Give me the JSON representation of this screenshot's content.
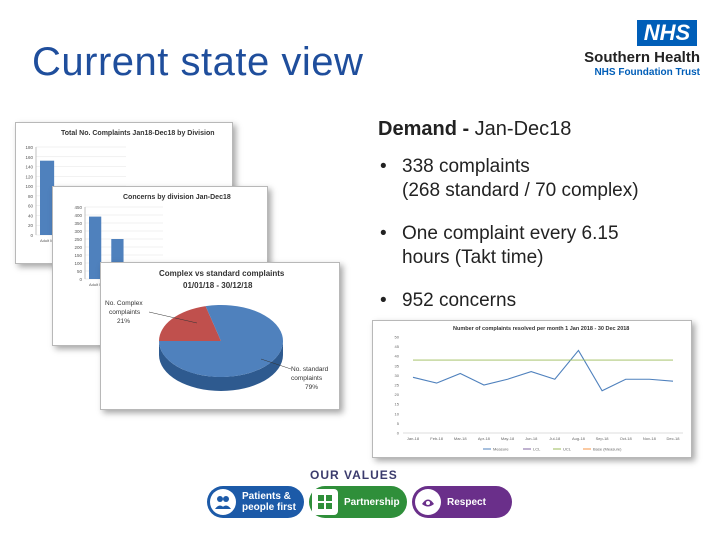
{
  "slide": {
    "title": "Current state view"
  },
  "logo": {
    "nhs": "NHS",
    "org_name": "Southern Health",
    "org_sub": "NHS Foundation Trust"
  },
  "demand": {
    "heading_bold": "Demand -",
    "heading_rest": " Jan-Dec18",
    "bullets": [
      {
        "line1": "338 complaints",
        "line2": "(268 standard / 70 complex)"
      },
      {
        "line1": "One complaint every 6.15",
        "line2": "hours (Takt time)"
      },
      {
        "line1": "952 concerns",
        "line2": ""
      }
    ]
  },
  "cards": {
    "division_complaints": {
      "title": "Total No. Complaints Jan18-Dec18 by Division",
      "chart_data": {
        "type": "bar",
        "categories": [
          "Adult Mental Health",
          "Adult Community"
        ],
        "values": [
          152,
          60
        ],
        "yticks": [
          "180",
          "160",
          "140",
          "120",
          "100",
          "80",
          "60",
          "40",
          "20",
          "0"
        ],
        "ylim": [
          0,
          180
        ]
      }
    },
    "division_concerns": {
      "title": "Concerns by division Jan-Dec18",
      "chart_data": {
        "type": "bar",
        "categories": [
          "Adult Mental Health",
          "Adult Community"
        ],
        "values": [
          390,
          250
        ],
        "yticks": [
          "450",
          "400",
          "350",
          "300",
          "250",
          "200",
          "150",
          "100",
          "50",
          "0"
        ],
        "ylim": [
          0,
          450
        ]
      }
    },
    "complex_vs_standard": {
      "title": "Complex vs standard complaints",
      "subtitle": "01/01/18 - 30/12/18",
      "chart_data": {
        "type": "pie",
        "slices": [
          {
            "label": "No. Complex complaints",
            "value": 21,
            "display": "21%",
            "color": "#c0504d"
          },
          {
            "label": "No. standard complaints",
            "value": 79,
            "display": "79%",
            "color": "#4f81bd"
          }
        ]
      }
    },
    "resolved_per_month": {
      "title": "Number of complaints resolved per month 1 Jan 2018 - 30 Dec 2018",
      "chart_data": {
        "type": "line",
        "categories": [
          "Jan-18",
          "Feb-18",
          "Mar-18",
          "Apr-18",
          "May-18",
          "Jun-18",
          "Jul-18",
          "Aug-18",
          "Sep-18",
          "Oct-18",
          "Nov-18",
          "Dec-18"
        ],
        "series": [
          {
            "name": "Measure",
            "values": [
              29,
              26,
              31,
              25,
              28,
              32,
              28,
              43,
              22,
              28,
              28,
              27
            ],
            "color": "#4f81bd"
          },
          {
            "name": "UCL",
            "values": [
              38,
              38,
              38,
              38,
              38,
              38,
              38,
              38,
              38,
              38,
              38,
              38
            ],
            "color": "#9bbb59"
          }
        ],
        "ylim": [
          0,
          50
        ],
        "yticks": [
          "50",
          "45",
          "40",
          "35",
          "30",
          "25",
          "20",
          "15",
          "10",
          "5",
          "0"
        ],
        "legend": [
          "Measure",
          "LCL",
          "UCL",
          "Base (Measure)"
        ]
      }
    }
  },
  "values_banner": {
    "label": "OUR VALUES",
    "items": [
      {
        "label": "Patients & people first",
        "color": "#1c5aa8",
        "icon": "people-icon"
      },
      {
        "label": "Partnership",
        "color": "#2f8f3a",
        "icon": "puzzle-icon"
      },
      {
        "label": "Respect",
        "color": "#6a2f8a",
        "icon": "respect-icon"
      }
    ]
  }
}
